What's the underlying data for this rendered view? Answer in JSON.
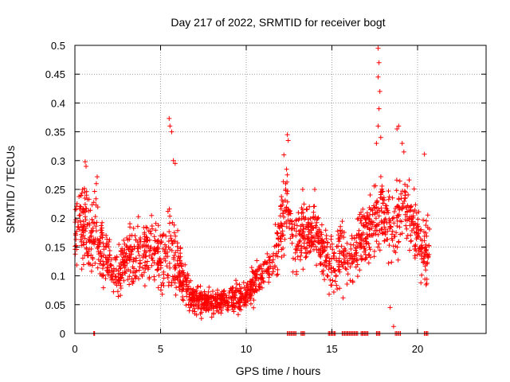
{
  "chart_data": {
    "type": "scatter",
    "title": "Day 217 of 2022, SRMTID for receiver bogt",
    "xlabel": "GPS time / hours",
    "ylabel": "SRMTID / TECUs",
    "xlim": [
      0,
      24
    ],
    "ylim": [
      0,
      0.5
    ],
    "xticks": [
      0,
      5,
      10,
      15,
      20
    ],
    "yticks": [
      0,
      0.05,
      0.1,
      0.15,
      0.2,
      0.25,
      0.3,
      0.35,
      0.4,
      0.45,
      0.5
    ],
    "xtick_labels": [
      "0",
      "5",
      "10",
      "15",
      "20"
    ],
    "ytick_labels": [
      "0",
      "0.05",
      "0.1",
      "0.15",
      "0.2",
      "0.25",
      "0.3",
      "0.35",
      "0.4",
      "0.45",
      "0.5"
    ],
    "marker": "plus",
    "grid": true,
    "series": [
      {
        "name": "SRMTID",
        "color": "#ff0000",
        "profile": [
          [
            0.0,
            0.18,
            0.05
          ],
          [
            0.5,
            0.19,
            0.06
          ],
          [
            1.0,
            0.15,
            0.06
          ],
          [
            1.2,
            0.19,
            0.06
          ],
          [
            1.5,
            0.15,
            0.05
          ],
          [
            2.0,
            0.12,
            0.04
          ],
          [
            2.5,
            0.1,
            0.04
          ],
          [
            3.0,
            0.13,
            0.05
          ],
          [
            3.5,
            0.14,
            0.05
          ],
          [
            4.0,
            0.14,
            0.05
          ],
          [
            4.5,
            0.15,
            0.05
          ],
          [
            5.0,
            0.13,
            0.05
          ],
          [
            5.5,
            0.14,
            0.06
          ],
          [
            6.0,
            0.12,
            0.05
          ],
          [
            6.5,
            0.08,
            0.03
          ],
          [
            7.0,
            0.06,
            0.02
          ],
          [
            8.0,
            0.055,
            0.02
          ],
          [
            9.0,
            0.06,
            0.02
          ],
          [
            10.0,
            0.065,
            0.02
          ],
          [
            10.5,
            0.09,
            0.03
          ],
          [
            11.0,
            0.1,
            0.03
          ],
          [
            11.5,
            0.12,
            0.03
          ],
          [
            12.0,
            0.17,
            0.05
          ],
          [
            12.3,
            0.24,
            0.06
          ],
          [
            12.6,
            0.18,
            0.05
          ],
          [
            13.0,
            0.16,
            0.05
          ],
          [
            13.5,
            0.17,
            0.04
          ],
          [
            14.0,
            0.18,
            0.04
          ],
          [
            14.5,
            0.14,
            0.04
          ],
          [
            15.0,
            0.12,
            0.04
          ],
          [
            15.5,
            0.14,
            0.05
          ],
          [
            16.0,
            0.12,
            0.04
          ],
          [
            16.5,
            0.15,
            0.05
          ],
          [
            17.0,
            0.17,
            0.05
          ],
          [
            17.5,
            0.2,
            0.06
          ],
          [
            18.0,
            0.21,
            0.05
          ],
          [
            18.5,
            0.18,
            0.06
          ],
          [
            19.0,
            0.21,
            0.06
          ],
          [
            19.5,
            0.22,
            0.06
          ],
          [
            20.0,
            0.16,
            0.05
          ],
          [
            20.5,
            0.14,
            0.05
          ],
          [
            20.7,
            0.15,
            0.04
          ]
        ],
        "outliers": [
          [
            5.5,
            0.373
          ],
          [
            5.55,
            0.36
          ],
          [
            5.65,
            0.35
          ],
          [
            5.75,
            0.3
          ],
          [
            5.85,
            0.295
          ],
          [
            12.4,
            0.345
          ],
          [
            12.45,
            0.335
          ],
          [
            12.2,
            0.31
          ],
          [
            17.7,
            0.495
          ],
          [
            17.75,
            0.47
          ],
          [
            17.7,
            0.445
          ],
          [
            17.8,
            0.42
          ],
          [
            17.75,
            0.39
          ],
          [
            17.7,
            0.36
          ],
          [
            17.85,
            0.34
          ],
          [
            17.6,
            0.33
          ],
          [
            18.8,
            0.355
          ],
          [
            18.9,
            0.36
          ],
          [
            19.1,
            0.33
          ],
          [
            19.2,
            0.315
          ],
          [
            20.4,
            0.311
          ],
          [
            0.6,
            0.298
          ],
          [
            0.65,
            0.29
          ],
          [
            1.3,
            0.272
          ],
          [
            1.25,
            0.26
          ],
          [
            18.4,
            0.045
          ],
          [
            18.6,
            0.012
          ],
          [
            14.0,
            0.25
          ],
          [
            13.3,
            0.25
          ]
        ],
        "zero_clusters": [
          [
            1.1,
            1.15
          ],
          [
            12.4,
            12.9
          ],
          [
            13.2,
            13.4
          ],
          [
            14.8,
            15.2
          ],
          [
            15.6,
            16.5
          ],
          [
            16.7,
            17.1
          ],
          [
            17.6,
            17.8
          ],
          [
            18.7,
            19.0
          ],
          [
            20.4,
            20.6
          ]
        ],
        "count": 1900,
        "seed": 217
      }
    ]
  }
}
